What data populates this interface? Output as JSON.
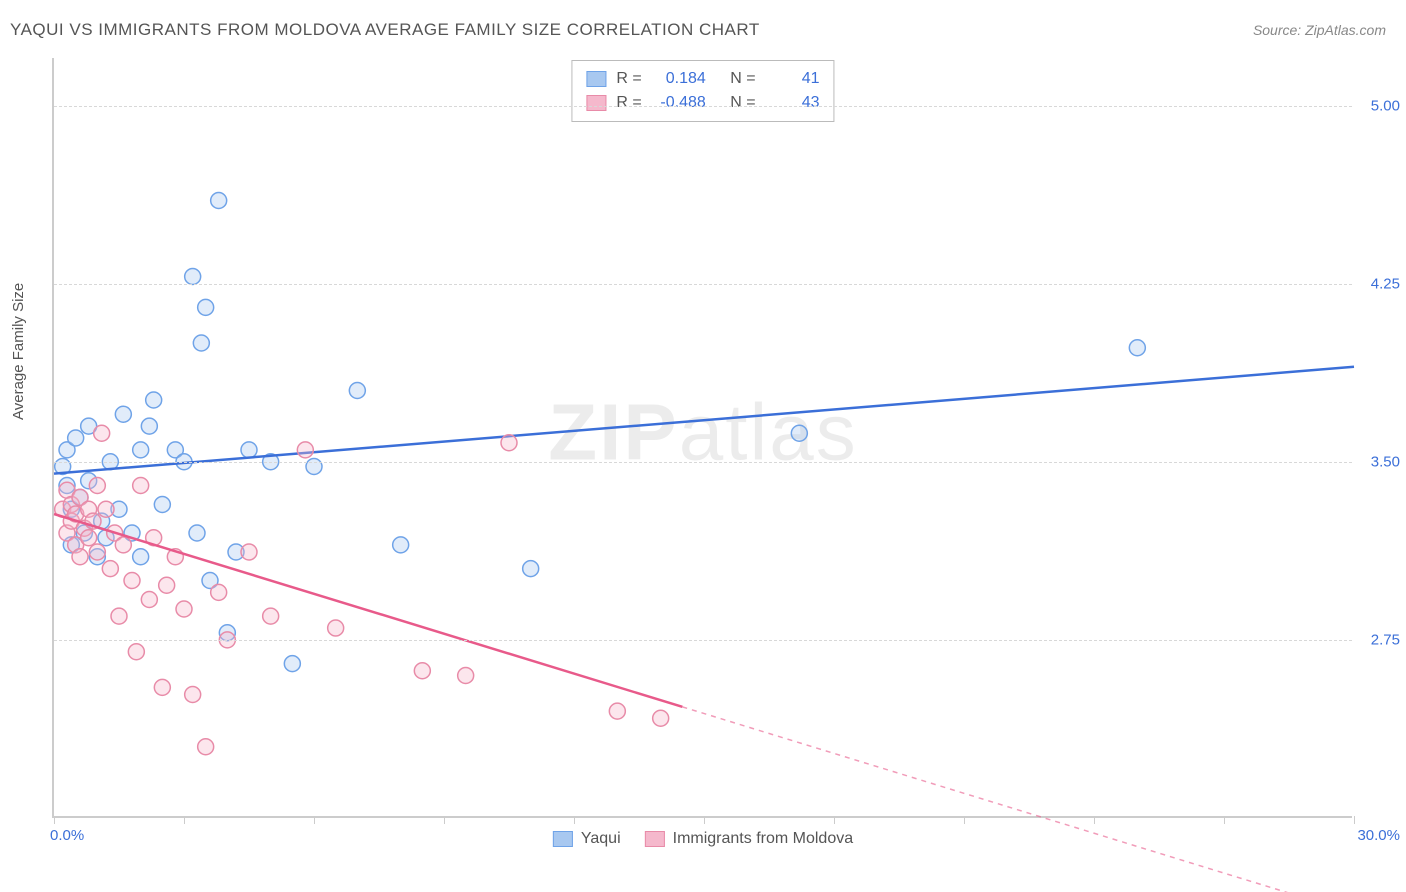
{
  "title": "YAQUI VS IMMIGRANTS FROM MOLDOVA AVERAGE FAMILY SIZE CORRELATION CHART",
  "source": "Source: ZipAtlas.com",
  "watermark_bold": "ZIP",
  "watermark_rest": "atlas",
  "chart": {
    "type": "scatter",
    "ylabel": "Average Family Size",
    "xlim": [
      0,
      30
    ],
    "ylim": [
      2.0,
      5.2
    ],
    "x_start_label": "0.0%",
    "x_end_label": "30.0%",
    "y_ticks": [
      2.75,
      3.5,
      4.25,
      5.0
    ],
    "y_tick_labels": [
      "2.75",
      "3.50",
      "4.25",
      "5.00"
    ],
    "x_tick_marks": [
      0,
      3,
      6,
      9,
      12,
      15,
      18,
      21,
      24,
      27,
      30
    ],
    "background_color": "#ffffff",
    "grid_color": "#d8d8d8",
    "axis_color": "#cccccc",
    "marker_radius": 8,
    "marker_fill_opacity": 0.35,
    "line_width": 2.5,
    "series": [
      {
        "name": "Yaqui",
        "color_stroke": "#6fa3e8",
        "color_fill": "#a8c8f0",
        "trend_color": "#3b6fd8",
        "R": "0.184",
        "N": "41",
        "trend": {
          "x1": 0,
          "y1": 3.45,
          "x2": 30,
          "y2": 3.9
        },
        "points": [
          [
            0.2,
            3.48
          ],
          [
            0.3,
            3.4
          ],
          [
            0.3,
            3.55
          ],
          [
            0.4,
            3.3
          ],
          [
            0.4,
            3.15
          ],
          [
            0.5,
            3.6
          ],
          [
            0.6,
            3.35
          ],
          [
            0.7,
            3.2
          ],
          [
            0.8,
            3.42
          ],
          [
            0.8,
            3.65
          ],
          [
            1.0,
            3.1
          ],
          [
            1.1,
            3.25
          ],
          [
            1.2,
            3.18
          ],
          [
            1.3,
            3.5
          ],
          [
            1.5,
            3.3
          ],
          [
            1.6,
            3.7
          ],
          [
            1.8,
            3.2
          ],
          [
            2.0,
            3.55
          ],
          [
            2.0,
            3.1
          ],
          [
            2.2,
            3.65
          ],
          [
            2.3,
            3.76
          ],
          [
            2.5,
            3.32
          ],
          [
            2.8,
            3.55
          ],
          [
            3.0,
            3.5
          ],
          [
            3.2,
            4.28
          ],
          [
            3.3,
            3.2
          ],
          [
            3.4,
            4.0
          ],
          [
            3.5,
            4.15
          ],
          [
            3.6,
            3.0
          ],
          [
            3.8,
            4.6
          ],
          [
            4.0,
            2.78
          ],
          [
            4.2,
            3.12
          ],
          [
            4.5,
            3.55
          ],
          [
            5.0,
            3.5
          ],
          [
            5.5,
            2.65
          ],
          [
            6.0,
            3.48
          ],
          [
            7.0,
            3.8
          ],
          [
            8.0,
            3.15
          ],
          [
            11.0,
            3.05
          ],
          [
            17.2,
            3.62
          ],
          [
            25.0,
            3.98
          ]
        ]
      },
      {
        "name": "Immigrants from Moldova",
        "color_stroke": "#e88ba8",
        "color_fill": "#f5b8cc",
        "trend_color": "#e85a8a",
        "R": "-0.488",
        "N": "43",
        "trend": {
          "x1": 0,
          "y1": 3.28,
          "x2": 30,
          "y2": 1.6
        },
        "trend_solid_until_x": 14.5,
        "points": [
          [
            0.2,
            3.3
          ],
          [
            0.3,
            3.38
          ],
          [
            0.3,
            3.2
          ],
          [
            0.4,
            3.25
          ],
          [
            0.4,
            3.32
          ],
          [
            0.5,
            3.15
          ],
          [
            0.5,
            3.28
          ],
          [
            0.6,
            3.1
          ],
          [
            0.6,
            3.35
          ],
          [
            0.7,
            3.22
          ],
          [
            0.8,
            3.18
          ],
          [
            0.8,
            3.3
          ],
          [
            0.9,
            3.25
          ],
          [
            1.0,
            3.4
          ],
          [
            1.0,
            3.12
          ],
          [
            1.1,
            3.62
          ],
          [
            1.2,
            3.3
          ],
          [
            1.3,
            3.05
          ],
          [
            1.4,
            3.2
          ],
          [
            1.5,
            2.85
          ],
          [
            1.6,
            3.15
          ],
          [
            1.8,
            3.0
          ],
          [
            1.9,
            2.7
          ],
          [
            2.0,
            3.4
          ],
          [
            2.2,
            2.92
          ],
          [
            2.3,
            3.18
          ],
          [
            2.5,
            2.55
          ],
          [
            2.6,
            2.98
          ],
          [
            2.8,
            3.1
          ],
          [
            3.0,
            2.88
          ],
          [
            3.2,
            2.52
          ],
          [
            3.5,
            2.3
          ],
          [
            3.8,
            2.95
          ],
          [
            4.0,
            2.75
          ],
          [
            4.5,
            3.12
          ],
          [
            5.0,
            2.85
          ],
          [
            5.8,
            3.55
          ],
          [
            6.5,
            2.8
          ],
          [
            8.5,
            2.62
          ],
          [
            9.5,
            2.6
          ],
          [
            10.5,
            3.58
          ],
          [
            13.0,
            2.45
          ],
          [
            14.0,
            2.42
          ]
        ]
      }
    ],
    "legend_top": {
      "r_label": "R =",
      "n_label": "N ="
    },
    "legend_bottom_labels": [
      "Yaqui",
      "Immigrants from Moldova"
    ]
  }
}
